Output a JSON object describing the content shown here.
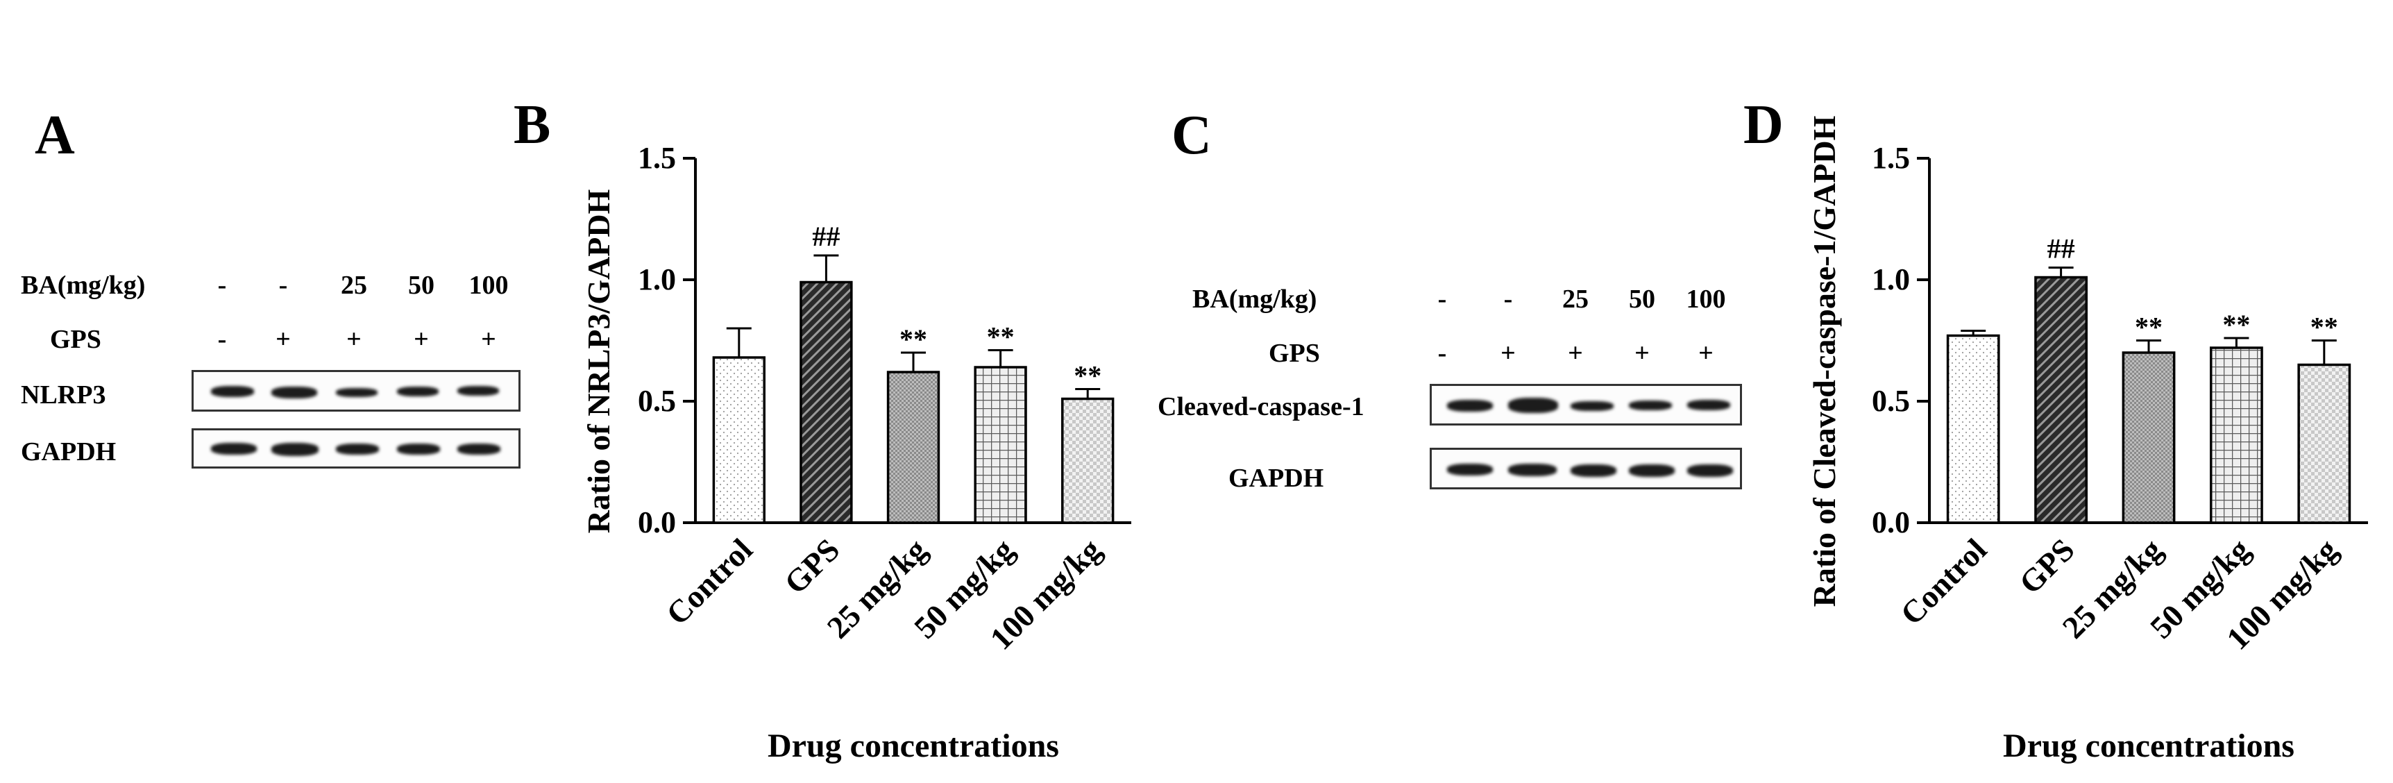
{
  "panels": {
    "A": {
      "letter": "A",
      "rows": [
        {
          "label": "BA(mg/kg)",
          "lanes": [
            "-",
            "-",
            "25",
            "50",
            "100"
          ]
        },
        {
          "label": "GPS",
          "lanes": [
            "-",
            "+",
            "+",
            "+",
            "+"
          ]
        }
      ],
      "blots": [
        "NLRP3",
        "GAPDH"
      ]
    },
    "C": {
      "letter": "C",
      "rows": [
        {
          "label": "BA(mg/kg)",
          "lanes": [
            "-",
            "-",
            "25",
            "50",
            "100"
          ]
        },
        {
          "label": "GPS",
          "lanes": [
            "-",
            "+",
            "+",
            "+",
            "+"
          ]
        }
      ],
      "blots": [
        "Cleaved-caspase-1",
        "GAPDH"
      ]
    }
  },
  "chart_data": [
    {
      "panel": "B",
      "type": "bar",
      "categories": [
        "Control",
        "GPS",
        "25 mg/kg",
        "50 mg/kg",
        "100 mg/kg"
      ],
      "values": [
        0.68,
        0.99,
        0.62,
        0.64,
        0.51
      ],
      "errors": [
        0.12,
        0.11,
        0.08,
        0.07,
        0.04
      ],
      "annotations": [
        "",
        "##",
        "**",
        "**",
        "**"
      ],
      "ylabel": "Ratio of NRLP3/GAPDH",
      "xlabel": "Drug concentrations",
      "ylim": [
        0,
        1.5
      ],
      "yticks": [
        "0.0",
        "0.5",
        "1.0",
        "1.5"
      ],
      "grid": false,
      "fills": [
        "dots",
        "dark-diagonal",
        "dense-gray",
        "grid",
        "checker"
      ]
    },
    {
      "panel": "D",
      "type": "bar",
      "categories": [
        "Control",
        "GPS",
        "25 mg/kg",
        "50 mg/kg",
        "100 mg/kg"
      ],
      "values": [
        0.77,
        1.01,
        0.7,
        0.72,
        0.65
      ],
      "errors": [
        0.02,
        0.04,
        0.05,
        0.04,
        0.1
      ],
      "annotations": [
        "",
        "##",
        "**",
        "**",
        "**"
      ],
      "ylabel": "Ratio of Cleaved-caspase-1/GAPDH",
      "xlabel": "Drug concentrations",
      "ylim": [
        0,
        1.5
      ],
      "yticks": [
        "0.0",
        "0.5",
        "1.0",
        "1.5"
      ],
      "grid": false,
      "fills": [
        "dots",
        "dark-diagonal",
        "dense-gray",
        "grid",
        "checker"
      ]
    }
  ]
}
